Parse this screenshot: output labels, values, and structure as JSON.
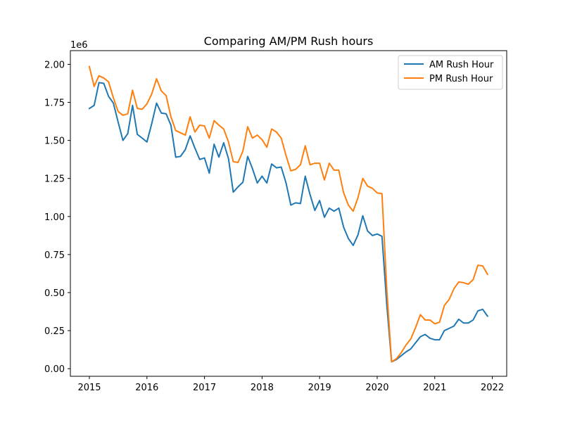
{
  "chart_data": {
    "type": "line",
    "title": "Comparing AM/PM Rush hours",
    "xlabel": "",
    "ylabel": "",
    "y_offset_label": "1e6",
    "xlim": [
      2014.67,
      2022.25
    ],
    "ylim": [
      -0.05,
      2.09
    ],
    "x_ticks": [
      2015,
      2016,
      2017,
      2018,
      2019,
      2020,
      2021,
      2022
    ],
    "x_tick_labels": [
      "2015",
      "2016",
      "2017",
      "2018",
      "2019",
      "2020",
      "2021",
      "2022"
    ],
    "y_ticks": [
      0.0,
      0.25,
      0.5,
      0.75,
      1.0,
      1.25,
      1.5,
      1.75,
      2.0
    ],
    "y_tick_labels": [
      "0.00",
      "0.25",
      "0.50",
      "0.75",
      "1.00",
      "1.25",
      "1.50",
      "1.75",
      "2.00"
    ],
    "grid": false,
    "legend_position": "top-right",
    "x": [
      2015.0,
      2015.083,
      2015.167,
      2015.25,
      2015.333,
      2015.417,
      2015.5,
      2015.583,
      2015.667,
      2015.75,
      2015.833,
      2015.917,
      2016.0,
      2016.083,
      2016.167,
      2016.25,
      2016.333,
      2016.417,
      2016.5,
      2016.583,
      2016.667,
      2016.75,
      2016.833,
      2016.917,
      2017.0,
      2017.083,
      2017.167,
      2017.25,
      2017.333,
      2017.417,
      2017.5,
      2017.583,
      2017.667,
      2017.75,
      2017.833,
      2017.917,
      2018.0,
      2018.083,
      2018.167,
      2018.25,
      2018.333,
      2018.417,
      2018.5,
      2018.583,
      2018.667,
      2018.75,
      2018.833,
      2018.917,
      2019.0,
      2019.083,
      2019.167,
      2019.25,
      2019.333,
      2019.417,
      2019.5,
      2019.583,
      2019.667,
      2019.75,
      2019.833,
      2019.917,
      2020.0,
      2020.083,
      2020.167,
      2020.25,
      2020.333,
      2020.417,
      2020.5,
      2020.583,
      2020.667,
      2020.75,
      2020.833,
      2020.917,
      2021.0,
      2021.083,
      2021.167,
      2021.25,
      2021.333,
      2021.417,
      2021.5,
      2021.583,
      2021.667,
      2021.75,
      2021.833,
      2021.917
    ],
    "series": [
      {
        "name": "AM Rush Hour",
        "color": "#1f77b4",
        "values": [
          1.71,
          1.73,
          1.88,
          1.875,
          1.79,
          1.745,
          1.62,
          1.5,
          1.545,
          1.73,
          1.54,
          1.515,
          1.49,
          1.61,
          1.745,
          1.68,
          1.675,
          1.6,
          1.39,
          1.395,
          1.44,
          1.53,
          1.45,
          1.375,
          1.385,
          1.285,
          1.475,
          1.39,
          1.485,
          1.38,
          1.16,
          1.195,
          1.225,
          1.395,
          1.315,
          1.22,
          1.265,
          1.22,
          1.345,
          1.32,
          1.325,
          1.22,
          1.075,
          1.09,
          1.085,
          1.265,
          1.145,
          1.04,
          1.105,
          0.995,
          1.055,
          1.035,
          1.055,
          0.93,
          0.855,
          0.81,
          0.88,
          1.005,
          0.905,
          0.875,
          0.885,
          0.87,
          0.42,
          0.045,
          0.06,
          0.085,
          0.11,
          0.13,
          0.17,
          0.21,
          0.225,
          0.2,
          0.19,
          0.19,
          0.25,
          0.265,
          0.28,
          0.325,
          0.3,
          0.3,
          0.32,
          0.38,
          0.39,
          0.345
        ]
      },
      {
        "name": "PM Rush Hour",
        "color": "#ff7f0e",
        "values": [
          1.985,
          1.855,
          1.925,
          1.91,
          1.885,
          1.78,
          1.69,
          1.665,
          1.675,
          1.83,
          1.71,
          1.705,
          1.74,
          1.805,
          1.905,
          1.825,
          1.795,
          1.655,
          1.565,
          1.55,
          1.535,
          1.655,
          1.555,
          1.6,
          1.595,
          1.515,
          1.63,
          1.6,
          1.575,
          1.49,
          1.36,
          1.355,
          1.43,
          1.59,
          1.515,
          1.535,
          1.505,
          1.455,
          1.575,
          1.555,
          1.515,
          1.4,
          1.3,
          1.31,
          1.34,
          1.465,
          1.34,
          1.35,
          1.35,
          1.24,
          1.35,
          1.305,
          1.305,
          1.155,
          1.075,
          1.035,
          1.125,
          1.25,
          1.2,
          1.185,
          1.155,
          1.15,
          0.52,
          0.045,
          0.065,
          0.105,
          0.155,
          0.195,
          0.27,
          0.355,
          0.32,
          0.32,
          0.295,
          0.305,
          0.415,
          0.455,
          0.525,
          0.57,
          0.565,
          0.555,
          0.585,
          0.68,
          0.675,
          0.62
        ]
      }
    ]
  }
}
